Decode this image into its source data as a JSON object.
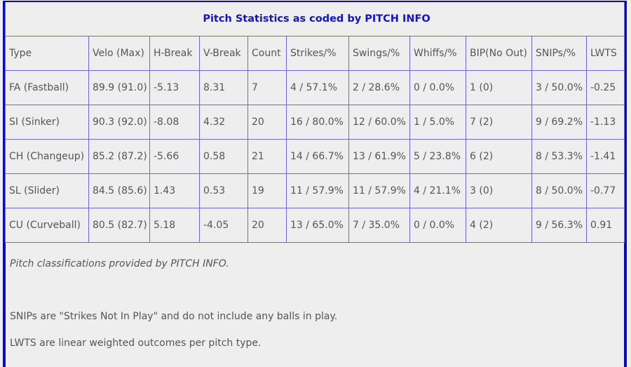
{
  "title": "Pitch Statistics as coded by PITCH INFO",
  "headers": [
    "Type",
    "Velo (Max)",
    "H-Break",
    "V-Break",
    "Count",
    "Strikes/%",
    "Swings/%",
    "Whiffs/%",
    "BIP(No Out)",
    "SNIPs/%",
    "LWTS"
  ],
  "rows": [
    [
      "FA (Fastball)",
      "89.9 (91.0)",
      "-5.13",
      "8.31",
      "7",
      "4 / 57.1%",
      "2 / 28.6%",
      "0 / 0.0%",
      "1 (0)",
      "3 / 50.0%",
      "-0.25"
    ],
    [
      "SI (Sinker)",
      "90.3 (92.0)",
      "-8.08",
      "4.32",
      "20",
      "16 / 80.0%",
      "12 / 60.0%",
      "1 / 5.0%",
      "7 (2)",
      "9 / 69.2%",
      "-1.13"
    ],
    [
      "CH (Changeup)",
      "85.2 (87.2)",
      "-5.66",
      "0.58",
      "21",
      "14 / 66.7%",
      "13 / 61.9%",
      "5 / 23.8%",
      "6 (2)",
      "8 / 53.3%",
      "-1.41"
    ],
    [
      "SL (Slider)",
      "84.5 (85.6)",
      "1.43",
      "0.53",
      "19",
      "11 / 57.9%",
      "11 / 57.9%",
      "4 / 21.1%",
      "3 (0)",
      "8 / 50.0%",
      "-0.77"
    ],
    [
      "CU (Curveball)",
      "80.5 (82.7)",
      "5.18",
      "-4.05",
      "20",
      "13 / 65.0%",
      "7 / 35.0%",
      "0 / 0.0%",
      "4 (2)",
      "9 / 56.3%",
      "0.91"
    ]
  ],
  "notes": {
    "classification": "Pitch classifications provided by PITCH INFO.",
    "snips": "SNIPs are \"Strikes Not In Play\" and do not include any balls in play.",
    "lwts": "LWTS are linear weighted outcomes per pitch type."
  }
}
